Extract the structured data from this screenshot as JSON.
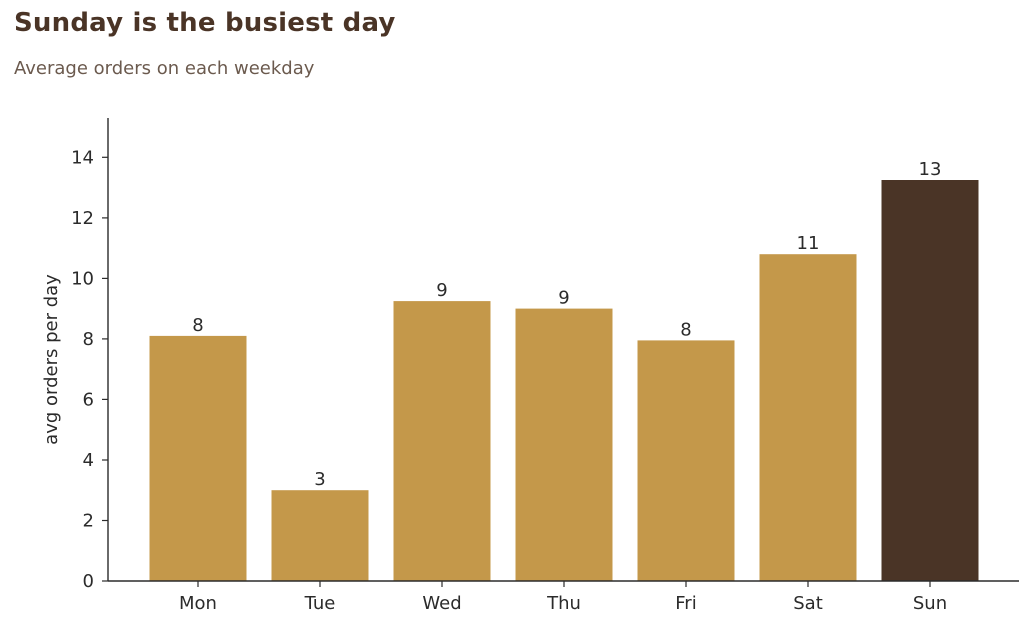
{
  "title": "Sunday is the busiest day",
  "subtitle": "Average orders on each weekday",
  "chart_data": {
    "type": "bar",
    "title": "Sunday is the busiest day",
    "subtitle": "Average orders on each weekday",
    "xlabel": "",
    "ylabel": "avg orders per day",
    "categories": [
      "Mon",
      "Tue",
      "Wed",
      "Thu",
      "Fri",
      "Sat",
      "Sun"
    ],
    "values": [
      8.1,
      3.0,
      9.25,
      9.0,
      7.95,
      10.8,
      13.25
    ],
    "data_labels": [
      "8",
      "3",
      "9",
      "9",
      "8",
      "11",
      "13"
    ],
    "yticks": [
      0,
      2,
      4,
      6,
      8,
      10,
      12,
      14
    ],
    "ylim": [
      0,
      15.3
    ],
    "grid": false,
    "colors": {
      "default": "#c4984a",
      "highlight": "#4a3426"
    },
    "highlight_category": "Sun"
  }
}
